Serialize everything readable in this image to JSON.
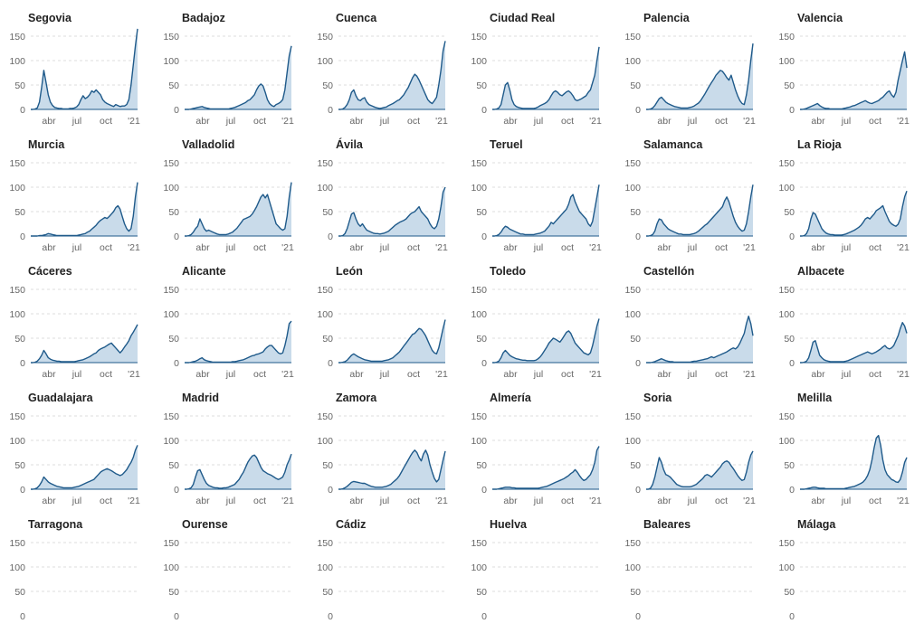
{
  "figure": {
    "accent_color": "#1f5a8a",
    "fill_color": "#c9dbea",
    "grid_color": "#dddddd"
  },
  "chart_data": {
    "type": "area",
    "title": "",
    "xlabel": "",
    "ylabel": "",
    "ylim": [
      0,
      150
    ],
    "yticks": [
      0,
      50,
      100,
      150
    ],
    "xticks": [
      "abr",
      "jul",
      "oct",
      "'21"
    ],
    "x_domain": [
      0,
      49
    ],
    "series": [
      {
        "name": "Segovia",
        "values": [
          0,
          0,
          1,
          3,
          15,
          45,
          80,
          55,
          30,
          15,
          8,
          4,
          3,
          2,
          2,
          1,
          1,
          1,
          2,
          2,
          3,
          5,
          10,
          20,
          28,
          22,
          25,
          30,
          38,
          35,
          40,
          35,
          30,
          20,
          15,
          12,
          10,
          8,
          6,
          10,
          8,
          6,
          7,
          7,
          10,
          20,
          50,
          90,
          130,
          165
        ]
      },
      {
        "name": "Badajoz",
        "values": [
          0,
          0,
          0,
          1,
          2,
          3,
          4,
          5,
          6,
          4,
          3,
          2,
          1,
          1,
          1,
          1,
          1,
          1,
          1,
          1,
          1,
          2,
          3,
          4,
          6,
          8,
          10,
          12,
          14,
          18,
          20,
          25,
          30,
          40,
          48,
          52,
          48,
          35,
          20,
          12,
          8,
          6,
          10,
          12,
          15,
          20,
          40,
          75,
          110,
          130
        ]
      },
      {
        "name": "Cuenca",
        "values": [
          0,
          0,
          1,
          4,
          10,
          20,
          35,
          40,
          28,
          20,
          18,
          22,
          24,
          15,
          10,
          8,
          6,
          4,
          3,
          2,
          3,
          4,
          5,
          8,
          10,
          12,
          15,
          18,
          20,
          25,
          30,
          38,
          45,
          55,
          65,
          72,
          68,
          60,
          50,
          40,
          30,
          20,
          15,
          12,
          18,
          25,
          50,
          80,
          120,
          140
        ]
      },
      {
        "name": "Ciudad Real",
        "values": [
          0,
          0,
          1,
          3,
          10,
          30,
          50,
          55,
          40,
          20,
          10,
          6,
          4,
          3,
          2,
          2,
          2,
          2,
          2,
          2,
          3,
          5,
          8,
          10,
          12,
          15,
          20,
          28,
          35,
          38,
          35,
          30,
          28,
          32,
          36,
          38,
          34,
          28,
          20,
          18,
          20,
          22,
          25,
          28,
          35,
          40,
          55,
          70,
          100,
          128
        ]
      },
      {
        "name": "Palencia",
        "values": [
          0,
          0,
          1,
          3,
          8,
          15,
          22,
          25,
          20,
          15,
          12,
          10,
          8,
          6,
          5,
          4,
          3,
          3,
          3,
          3,
          4,
          5,
          7,
          10,
          13,
          18,
          25,
          32,
          40,
          48,
          55,
          62,
          70,
          75,
          80,
          78,
          72,
          65,
          60,
          70,
          55,
          40,
          28,
          18,
          12,
          10,
          30,
          60,
          100,
          135
        ]
      },
      {
        "name": "Valencia",
        "values": [
          0,
          0,
          1,
          2,
          4,
          6,
          8,
          10,
          12,
          8,
          5,
          3,
          2,
          2,
          1,
          1,
          1,
          1,
          1,
          1,
          2,
          3,
          4,
          5,
          7,
          8,
          10,
          12,
          14,
          16,
          18,
          15,
          13,
          12,
          14,
          16,
          18,
          22,
          25,
          30,
          35,
          38,
          30,
          25,
          35,
          60,
          80,
          100,
          118,
          85
        ]
      },
      {
        "name": "Murcia",
        "values": [
          0,
          0,
          0,
          0,
          1,
          1,
          2,
          3,
          5,
          4,
          3,
          2,
          1,
          1,
          1,
          1,
          1,
          1,
          1,
          1,
          1,
          1,
          2,
          3,
          4,
          5,
          8,
          10,
          14,
          18,
          22,
          28,
          32,
          35,
          38,
          36,
          40,
          45,
          50,
          58,
          62,
          55,
          40,
          25,
          15,
          10,
          15,
          40,
          80,
          110
        ]
      },
      {
        "name": "Valladolid",
        "values": [
          0,
          0,
          1,
          3,
          8,
          15,
          20,
          35,
          25,
          15,
          10,
          12,
          10,
          8,
          6,
          4,
          3,
          3,
          3,
          3,
          4,
          6,
          8,
          12,
          16,
          22,
          28,
          34,
          36,
          38,
          40,
          45,
          52,
          60,
          70,
          80,
          85,
          78,
          85,
          70,
          55,
          40,
          25,
          20,
          15,
          12,
          15,
          40,
          80,
          110
        ]
      },
      {
        "name": "Ávila",
        "values": [
          0,
          0,
          1,
          5,
          15,
          30,
          45,
          48,
          35,
          25,
          20,
          25,
          18,
          12,
          10,
          8,
          6,
          5,
          5,
          4,
          5,
          6,
          8,
          10,
          14,
          18,
          22,
          25,
          28,
          30,
          32,
          35,
          40,
          45,
          48,
          50,
          55,
          60,
          50,
          45,
          40,
          35,
          25,
          18,
          15,
          20,
          35,
          60,
          90,
          100
        ]
      },
      {
        "name": "Teruel",
        "values": [
          0,
          0,
          1,
          3,
          8,
          15,
          20,
          18,
          14,
          12,
          10,
          8,
          6,
          4,
          4,
          3,
          3,
          3,
          3,
          3,
          4,
          5,
          6,
          8,
          10,
          15,
          20,
          28,
          25,
          30,
          35,
          40,
          45,
          50,
          55,
          65,
          80,
          85,
          70,
          60,
          50,
          45,
          40,
          35,
          25,
          20,
          30,
          55,
          80,
          105
        ]
      },
      {
        "name": "Salamanca",
        "values": [
          0,
          0,
          1,
          3,
          10,
          25,
          35,
          33,
          25,
          20,
          15,
          12,
          10,
          8,
          6,
          4,
          4,
          3,
          3,
          3,
          3,
          4,
          5,
          7,
          10,
          14,
          18,
          22,
          25,
          30,
          35,
          40,
          45,
          50,
          55,
          60,
          72,
          80,
          70,
          55,
          40,
          28,
          20,
          14,
          10,
          12,
          25,
          50,
          80,
          105
        ]
      },
      {
        "name": "La Rioja",
        "values": [
          0,
          0,
          1,
          5,
          15,
          35,
          48,
          45,
          35,
          25,
          15,
          10,
          6,
          4,
          3,
          3,
          2,
          2,
          2,
          2,
          3,
          4,
          6,
          8,
          10,
          12,
          15,
          18,
          22,
          28,
          35,
          38,
          35,
          40,
          45,
          52,
          55,
          58,
          62,
          50,
          40,
          30,
          25,
          22,
          20,
          24,
          35,
          60,
          80,
          92
        ]
      },
      {
        "name": "Cáceres",
        "values": [
          0,
          0,
          1,
          3,
          8,
          15,
          25,
          18,
          10,
          7,
          5,
          4,
          3,
          3,
          2,
          2,
          2,
          2,
          2,
          2,
          2,
          3,
          4,
          5,
          6,
          8,
          10,
          12,
          15,
          18,
          20,
          25,
          28,
          30,
          32,
          35,
          38,
          40,
          35,
          30,
          25,
          20,
          25,
          32,
          38,
          45,
          55,
          62,
          70,
          78
        ]
      },
      {
        "name": "Alicante",
        "values": [
          0,
          0,
          0,
          1,
          2,
          3,
          5,
          8,
          10,
          6,
          4,
          3,
          2,
          1,
          1,
          1,
          1,
          1,
          1,
          1,
          1,
          1,
          2,
          2,
          3,
          4,
          5,
          6,
          8,
          10,
          12,
          14,
          15,
          17,
          18,
          20,
          22,
          28,
          32,
          35,
          35,
          30,
          25,
          20,
          18,
          20,
          35,
          55,
          80,
          85
        ]
      },
      {
        "name": "León",
        "values": [
          0,
          0,
          1,
          2,
          5,
          10,
          15,
          18,
          15,
          12,
          10,
          8,
          6,
          5,
          4,
          3,
          3,
          3,
          3,
          3,
          3,
          4,
          5,
          6,
          8,
          10,
          14,
          18,
          22,
          28,
          34,
          40,
          46,
          52,
          58,
          60,
          65,
          70,
          68,
          62,
          55,
          45,
          35,
          25,
          20,
          18,
          30,
          50,
          70,
          88
        ]
      },
      {
        "name": "Toledo",
        "values": [
          0,
          0,
          1,
          3,
          10,
          20,
          25,
          20,
          15,
          12,
          10,
          8,
          7,
          6,
          5,
          5,
          4,
          4,
          4,
          4,
          5,
          8,
          12,
          18,
          25,
          32,
          40,
          45,
          50,
          48,
          45,
          42,
          48,
          55,
          62,
          65,
          60,
          50,
          40,
          35,
          30,
          25,
          20,
          18,
          16,
          20,
          35,
          55,
          75,
          90
        ]
      },
      {
        "name": "Castellón",
        "values": [
          0,
          0,
          0,
          1,
          2,
          4,
          6,
          8,
          6,
          4,
          3,
          2,
          2,
          1,
          1,
          1,
          1,
          1,
          1,
          1,
          1,
          2,
          3,
          3,
          4,
          5,
          6,
          7,
          8,
          10,
          12,
          10,
          12,
          14,
          16,
          18,
          20,
          22,
          25,
          28,
          30,
          28,
          32,
          40,
          50,
          60,
          80,
          95,
          80,
          55
        ]
      },
      {
        "name": "Albacete",
        "values": [
          0,
          0,
          1,
          3,
          10,
          25,
          42,
          45,
          30,
          15,
          10,
          6,
          4,
          3,
          2,
          2,
          2,
          2,
          2,
          2,
          2,
          3,
          4,
          6,
          8,
          10,
          12,
          14,
          16,
          18,
          20,
          22,
          20,
          18,
          20,
          22,
          25,
          28,
          32,
          35,
          30,
          28,
          30,
          35,
          45,
          55,
          70,
          82,
          75,
          60
        ]
      },
      {
        "name": "Guadalajara",
        "values": [
          0,
          0,
          1,
          3,
          8,
          15,
          25,
          20,
          15,
          12,
          10,
          8,
          6,
          5,
          4,
          3,
          3,
          3,
          3,
          3,
          4,
          5,
          6,
          8,
          10,
          12,
          14,
          16,
          18,
          20,
          25,
          30,
          35,
          38,
          40,
          42,
          40,
          38,
          35,
          32,
          30,
          28,
          30,
          35,
          40,
          48,
          55,
          65,
          80,
          90
        ]
      },
      {
        "name": "Madrid",
        "values": [
          0,
          0,
          1,
          3,
          10,
          25,
          38,
          40,
          30,
          20,
          12,
          8,
          6,
          4,
          3,
          3,
          2,
          2,
          3,
          3,
          4,
          6,
          8,
          10,
          15,
          20,
          28,
          35,
          45,
          55,
          62,
          68,
          70,
          65,
          55,
          45,
          38,
          35,
          32,
          30,
          28,
          25,
          22,
          20,
          22,
          25,
          35,
          50,
          60,
          72
        ]
      },
      {
        "name": "Zamora",
        "values": [
          0,
          0,
          1,
          3,
          6,
          10,
          14,
          16,
          15,
          14,
          13,
          12,
          12,
          10,
          8,
          6,
          5,
          4,
          4,
          4,
          4,
          5,
          6,
          8,
          10,
          14,
          18,
          22,
          28,
          36,
          44,
          52,
          60,
          68,
          75,
          80,
          75,
          65,
          58,
          72,
          80,
          70,
          50,
          35,
          22,
          15,
          20,
          40,
          60,
          78
        ]
      },
      {
        "name": "Almería",
        "values": [
          0,
          0,
          0,
          1,
          2,
          3,
          4,
          4,
          4,
          3,
          3,
          2,
          2,
          2,
          2,
          2,
          2,
          2,
          2,
          2,
          2,
          2,
          3,
          4,
          5,
          6,
          8,
          10,
          12,
          14,
          16,
          18,
          20,
          22,
          25,
          28,
          32,
          35,
          40,
          35,
          28,
          22,
          18,
          20,
          25,
          30,
          40,
          55,
          80,
          88
        ]
      },
      {
        "name": "Soria",
        "values": [
          0,
          0,
          2,
          10,
          25,
          45,
          65,
          55,
          40,
          30,
          28,
          25,
          20,
          15,
          10,
          8,
          6,
          5,
          5,
          5,
          5,
          6,
          8,
          10,
          14,
          18,
          22,
          28,
          30,
          28,
          25,
          30,
          35,
          40,
          45,
          52,
          56,
          58,
          55,
          48,
          42,
          35,
          28,
          22,
          18,
          20,
          35,
          55,
          70,
          78
        ]
      },
      {
        "name": "Melilla",
        "values": [
          0,
          0,
          0,
          1,
          2,
          3,
          4,
          4,
          3,
          2,
          2,
          2,
          1,
          1,
          1,
          1,
          1,
          1,
          1,
          1,
          1,
          2,
          3,
          4,
          5,
          6,
          8,
          10,
          12,
          15,
          20,
          28,
          40,
          60,
          85,
          105,
          110,
          90,
          60,
          40,
          30,
          25,
          20,
          18,
          15,
          14,
          20,
          35,
          55,
          65
        ]
      },
      {
        "name": "Tarragona",
        "values": []
      },
      {
        "name": "Ourense",
        "values": []
      },
      {
        "name": "Cádiz",
        "values": []
      },
      {
        "name": "Huelva",
        "values": []
      },
      {
        "name": "Baleares",
        "values": []
      },
      {
        "name": "Málaga",
        "values": []
      }
    ]
  }
}
